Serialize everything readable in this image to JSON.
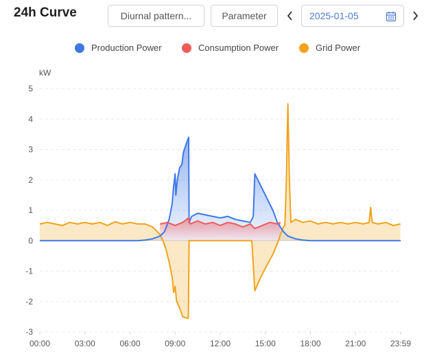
{
  "header": {
    "title": "24h Curve",
    "diurnal_button": "Diurnal pattern...",
    "parameter_button": "Parameter",
    "date": "2025-01-05"
  },
  "icons": {
    "prev": "chevron-left-icon",
    "next": "chevron-right-icon",
    "calendar": "calendar-icon"
  },
  "colors": {
    "production": "#3f78e6",
    "consumption": "#ef5b5b",
    "grid": "#f0a31c"
  },
  "chart_data": {
    "type": "area",
    "ylabel": "kW",
    "ylim": [
      -3,
      5
    ],
    "yticks": [
      "5",
      "4",
      "3",
      "2",
      "1",
      "0",
      "-1",
      "-2",
      "-3"
    ],
    "xticks": [
      "00:00",
      "03:00",
      "06:00",
      "09:00",
      "12:00",
      "15:00",
      "18:00",
      "21:00",
      "23:59"
    ],
    "x_range_hours": [
      0,
      24
    ],
    "grid": true,
    "legend_position": "top-center",
    "series": [
      {
        "name": "Production Power",
        "points": [
          [
            0,
            0
          ],
          [
            6.5,
            0
          ],
          [
            7.0,
            0.02
          ],
          [
            7.5,
            0.06
          ],
          [
            8.0,
            0.15
          ],
          [
            8.3,
            0.3
          ],
          [
            8.6,
            0.7
          ],
          [
            8.8,
            1.2
          ],
          [
            8.9,
            1.8
          ],
          [
            9.0,
            2.2
          ],
          [
            9.05,
            1.5
          ],
          [
            9.15,
            2.0
          ],
          [
            9.3,
            2.4
          ],
          [
            9.45,
            2.5
          ],
          [
            9.55,
            2.9
          ],
          [
            9.75,
            3.2
          ],
          [
            9.9,
            3.4
          ],
          [
            9.93,
            0.6
          ],
          [
            10.1,
            0.8
          ],
          [
            10.5,
            0.9
          ],
          [
            11.0,
            0.85
          ],
          [
            11.5,
            0.8
          ],
          [
            12.0,
            0.75
          ],
          [
            12.5,
            0.8
          ],
          [
            13.0,
            0.7
          ],
          [
            13.5,
            0.65
          ],
          [
            14.0,
            0.6
          ],
          [
            14.2,
            0.8
          ],
          [
            14.3,
            2.2
          ],
          [
            14.6,
            1.9
          ],
          [
            15.0,
            1.5
          ],
          [
            15.5,
            1.0
          ],
          [
            15.8,
            0.6
          ],
          [
            16.2,
            0.3
          ],
          [
            16.5,
            0.15
          ],
          [
            17.0,
            0.06
          ],
          [
            17.5,
            0.02
          ],
          [
            18.0,
            0
          ],
          [
            24.0,
            0
          ]
        ]
      },
      {
        "name": "Consumption Power",
        "points": [
          [
            8.0,
            0.55
          ],
          [
            8.5,
            0.6
          ],
          [
            9.0,
            0.5
          ],
          [
            9.5,
            0.6
          ],
          [
            9.9,
            0.75
          ],
          [
            10.0,
            0.55
          ],
          [
            10.5,
            0.65
          ],
          [
            11.0,
            0.55
          ],
          [
            11.5,
            0.6
          ],
          [
            12.0,
            0.5
          ],
          [
            12.5,
            0.6
          ],
          [
            13.0,
            0.55
          ],
          [
            13.5,
            0.45
          ],
          [
            14.0,
            0.55
          ],
          [
            14.3,
            0.4
          ],
          [
            14.8,
            0.5
          ],
          [
            15.3,
            0.6
          ],
          [
            15.8,
            0.55
          ],
          [
            16.0,
            0.6
          ]
        ]
      },
      {
        "name": "Grid Power",
        "points": [
          [
            0,
            0.55
          ],
          [
            0.5,
            0.6
          ],
          [
            1.0,
            0.55
          ],
          [
            1.5,
            0.5
          ],
          [
            2.0,
            0.6
          ],
          [
            2.5,
            0.55
          ],
          [
            3.0,
            0.6
          ],
          [
            3.5,
            0.55
          ],
          [
            4.0,
            0.6
          ],
          [
            4.5,
            0.5
          ],
          [
            5.0,
            0.62
          ],
          [
            5.5,
            0.55
          ],
          [
            6.0,
            0.6
          ],
          [
            6.5,
            0.55
          ],
          [
            7.0,
            0.55
          ],
          [
            7.5,
            0.45
          ],
          [
            7.8,
            0.3
          ],
          [
            8.0,
            0.2
          ],
          [
            8.2,
            0.0
          ],
          [
            8.4,
            -0.3
          ],
          [
            8.6,
            -0.7
          ],
          [
            8.8,
            -1.2
          ],
          [
            8.9,
            -1.7
          ],
          [
            9.0,
            -1.5
          ],
          [
            9.1,
            -2.0
          ],
          [
            9.3,
            -2.2
          ],
          [
            9.5,
            -2.5
          ],
          [
            9.8,
            -2.55
          ],
          [
            9.88,
            -2.55
          ],
          [
            9.93,
            0.0
          ],
          [
            10.1,
            0.0
          ],
          [
            14.1,
            0.0
          ],
          [
            14.3,
            -1.65
          ],
          [
            14.6,
            -1.3
          ],
          [
            15.0,
            -0.9
          ],
          [
            15.5,
            -0.45
          ],
          [
            15.8,
            -0.1
          ],
          [
            16.0,
            0.2
          ],
          [
            16.2,
            0.45
          ],
          [
            16.3,
            0.5
          ],
          [
            16.4,
            2.0
          ],
          [
            16.5,
            4.5
          ],
          [
            16.6,
            2.0
          ],
          [
            16.7,
            0.6
          ],
          [
            17.0,
            0.7
          ],
          [
            17.5,
            0.6
          ],
          [
            18.0,
            0.65
          ],
          [
            18.5,
            0.55
          ],
          [
            19.0,
            0.6
          ],
          [
            19.5,
            0.55
          ],
          [
            20.0,
            0.6
          ],
          [
            20.5,
            0.55
          ],
          [
            21.0,
            0.6
          ],
          [
            21.5,
            0.55
          ],
          [
            21.9,
            0.6
          ],
          [
            22.0,
            1.1
          ],
          [
            22.1,
            0.6
          ],
          [
            22.5,
            0.55
          ],
          [
            23.0,
            0.6
          ],
          [
            23.5,
            0.5
          ],
          [
            23.98,
            0.55
          ]
        ]
      }
    ]
  }
}
